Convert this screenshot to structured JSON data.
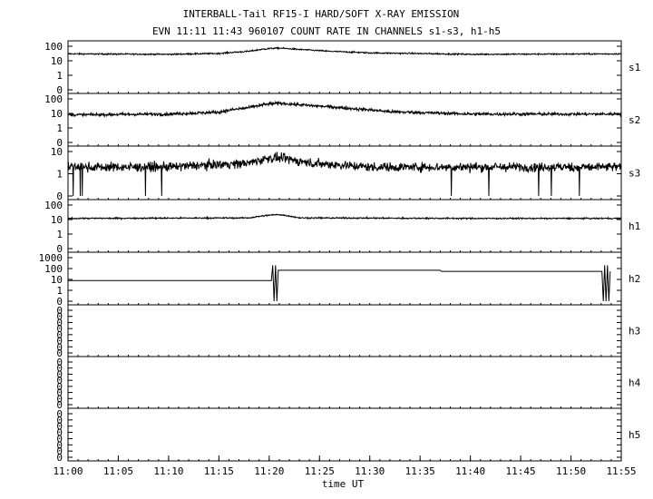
{
  "title": "INTERBALL-Tail RF15-I HARD/SOFT X-RAY EMISSION",
  "subtitle": "EVN 11:11 11:43 960107  COUNT RATE IN CHANNELS s1-s3, h1-h5",
  "chart_data": {
    "type": "line",
    "title": "INTERBALL-Tail RF15-I HARD/SOFT X-RAY EMISSION",
    "subtitle": "EVN 11:11 11:43 960107  COUNT RATE IN CHANNELS s1-s3, h1-h5",
    "xlabel": "time UT",
    "x_ticks": [
      "11:00",
      "11:05",
      "11:10",
      "11:15",
      "11:20",
      "11:25",
      "11:30",
      "11:35",
      "11:40",
      "11:45",
      "11:50",
      "11:55"
    ],
    "xlim": [
      "11:00",
      "11:55"
    ],
    "y_scale": "log",
    "grid": false,
    "panels": [
      {
        "channel": "s1",
        "ytick_labels": [
          "100",
          "10",
          "1",
          "0"
        ],
        "ylim": [
          0,
          100
        ],
        "series": [
          {
            "name": "s1",
            "x": [
              "11:00",
              "11:10",
              "11:15",
              "11:18",
              "11:20",
              "11:21",
              "11:23",
              "11:26",
              "11:30",
              "11:40",
              "11:55"
            ],
            "y": [
              30,
              28,
              32,
              45,
              70,
              75,
              60,
              45,
              35,
              28,
              30
            ]
          }
        ]
      },
      {
        "channel": "s2",
        "ytick_labels": [
          "100",
          "10",
          "1",
          "0"
        ],
        "ylim": [
          0,
          100
        ],
        "series": [
          {
            "name": "s2",
            "x": [
              "11:00",
              "11:10",
              "11:15",
              "11:18",
              "11:20",
              "11:21",
              "11:24",
              "11:28",
              "11:32",
              "11:40",
              "11:55"
            ],
            "y": [
              8,
              9,
              12,
              25,
              45,
              50,
              35,
              22,
              13,
              9,
              9
            ]
          }
        ]
      },
      {
        "channel": "s3",
        "ytick_labels": [
          "10",
          "1",
          "0"
        ],
        "ylim": [
          0,
          10
        ],
        "series": [
          {
            "name": "s3",
            "x": [
              "11:00",
              "11:10",
              "11:18",
              "11:20",
              "11:21",
              "11:24",
              "11:30",
              "11:40",
              "11:55"
            ],
            "y": [
              2,
              2,
              3,
              5,
              5,
              3,
              2,
              2,
              2
            ]
          }
        ]
      },
      {
        "channel": "h1",
        "ytick_labels": [
          "100",
          "10",
          "1",
          "0"
        ],
        "ylim": [
          0,
          100
        ],
        "series": [
          {
            "name": "h1",
            "x": [
              "11:00",
              "11:18",
              "11:20",
              "11:21",
              "11:23",
              "11:40",
              "11:55"
            ],
            "y": [
              12,
              13,
              20,
              22,
              13,
              12,
              12
            ]
          }
        ]
      },
      {
        "channel": "h2",
        "ytick_labels": [
          "1000",
          "100",
          "10",
          "1",
          "0"
        ],
        "ylim": [
          0,
          1000
        ],
        "series": [
          {
            "name": "h2",
            "x": [
              "11:00",
              "11:20.4",
              "11:21",
              "11:37",
              "11:37.1",
              "11:53.3",
              "11:54"
            ],
            "y": [
              8,
              8,
              70,
              70,
              55,
              55,
              55
            ]
          }
        ]
      },
      {
        "channel": "h3",
        "ytick_labels": [
          "0",
          "0",
          "0",
          "0",
          "0",
          "0",
          "0",
          "0"
        ],
        "series": []
      },
      {
        "channel": "h4",
        "ytick_labels": [
          "0",
          "0",
          "0",
          "0",
          "0",
          "0",
          "0",
          "0"
        ],
        "series": []
      },
      {
        "channel": "h5",
        "ytick_labels": [
          "0",
          "0",
          "0",
          "0",
          "0",
          "0",
          "0",
          "0"
        ],
        "series": []
      }
    ]
  }
}
